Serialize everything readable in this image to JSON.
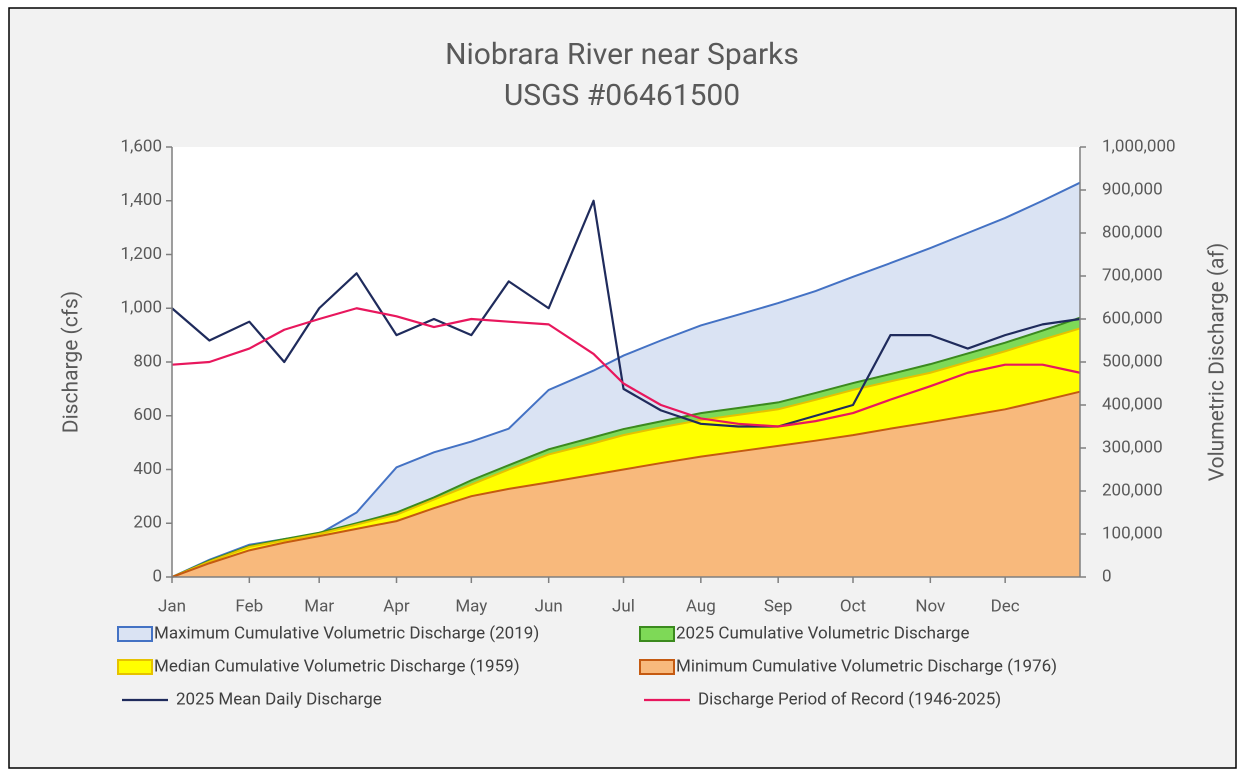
{
  "chart_data": {
    "type": "area-line",
    "title": "Niobrara River near Sparks",
    "subtitle": "USGS #06461500",
    "y_label": "Discharge (cfs)",
    "y2_label": "Volumetric Discharge (af)",
    "x": [
      1,
      16,
      32,
      46,
      60,
      75,
      91,
      106,
      121,
      136,
      152,
      170,
      182,
      197,
      213,
      228,
      244,
      259,
      274,
      289,
      305,
      320,
      335,
      350,
      365
    ],
    "xlim": [
      1,
      365
    ],
    "xticks": [
      {
        "value": 1,
        "label": "Jan"
      },
      {
        "value": 32,
        "label": "Feb"
      },
      {
        "value": 60,
        "label": "Mar"
      },
      {
        "value": 91,
        "label": "Apr"
      },
      {
        "value": 121,
        "label": "May"
      },
      {
        "value": 152,
        "label": "Jun"
      },
      {
        "value": 182,
        "label": "Jul"
      },
      {
        "value": 213,
        "label": "Aug"
      },
      {
        "value": 244,
        "label": "Sep"
      },
      {
        "value": 274,
        "label": "Oct"
      },
      {
        "value": 305,
        "label": "Nov"
      },
      {
        "value": 335,
        "label": "Dec"
      }
    ],
    "ylim": [
      0,
      1600
    ],
    "yticks": [
      0,
      200,
      400,
      600,
      800,
      {
        "value": 1000,
        "label": "1,000"
      },
      {
        "value": 1200,
        "label": "1,200"
      },
      {
        "value": 1400,
        "label": "1,400"
      },
      {
        "value": 1600,
        "label": "1,600"
      }
    ],
    "y2lim": [
      0,
      1000000
    ],
    "y2ticks": [
      0,
      {
        "value": 100000,
        "label": "100,000"
      },
      {
        "value": 200000,
        "label": "200,000"
      },
      {
        "value": 300000,
        "label": "300,000"
      },
      {
        "value": 400000,
        "label": "400,000"
      },
      {
        "value": 500000,
        "label": "500,000"
      },
      {
        "value": 600000,
        "label": "600,000"
      },
      {
        "value": 700000,
        "label": "700,000"
      },
      {
        "value": 800000,
        "label": "800,000"
      },
      {
        "value": 900000,
        "label": "900,000"
      },
      {
        "value": 1000000,
        "label": "1,000,000"
      }
    ],
    "series": [
      {
        "name": "Maximum Cumulative Volumetric Discharge (2019)",
        "type": "area",
        "axis": "y2",
        "color": "#4472c4",
        "fill": "#dae3f3",
        "values": [
          0,
          40000,
          75000,
          88000,
          100000,
          150000,
          255000,
          290000,
          315000,
          345000,
          435000,
          480000,
          515000,
          550000,
          585000,
          610000,
          637000,
          665000,
          698000,
          730000,
          765000,
          800000,
          835000,
          875000,
          917000
        ]
      },
      {
        "name": "2025 Cumulative Volumetric Discharge",
        "type": "area",
        "axis": "y2",
        "color": "#3b8a1e",
        "fill": "#7ed957",
        "values": [
          0,
          38000,
          72000,
          88000,
          103000,
          125000,
          150000,
          185000,
          225000,
          260000,
          297000,
          325000,
          344000,
          362000,
          381000,
          393000,
          406000,
          428000,
          451000,
          472000,
          495000,
          520000,
          545000,
          573000,
          603000
        ]
      },
      {
        "name": "Median Cumulative Volumetric Discharge (1959)",
        "type": "area",
        "axis": "y2",
        "color": "#e6c200",
        "fill": "#ffff00",
        "values": [
          0,
          36000,
          70000,
          85000,
          100000,
          122000,
          145000,
          180000,
          215000,
          250000,
          285000,
          311000,
          330000,
          348000,
          365000,
          377000,
          390000,
          412000,
          435000,
          455000,
          475000,
          500000,
          525000,
          552000,
          578000
        ]
      },
      {
        "name": "Minimum Cumulative Volumetric Discharge (1976)",
        "type": "area",
        "axis": "y2",
        "color": "#c55a11",
        "fill": "#f8b97c",
        "values": [
          0,
          32000,
          62000,
          80000,
          95000,
          112000,
          130000,
          160000,
          188000,
          205000,
          220000,
          238000,
          250000,
          265000,
          280000,
          292000,
          305000,
          317000,
          330000,
          345000,
          360000,
          375000,
          390000,
          410000,
          431000
        ]
      },
      {
        "name": "2025 Mean Daily Discharge",
        "type": "line",
        "axis": "y",
        "color": "#1f2b5c",
        "values": [
          1000,
          880,
          950,
          800,
          1000,
          1130,
          900,
          960,
          900,
          1100,
          1000,
          1400,
          700,
          620,
          570,
          560,
          560,
          600,
          640,
          900,
          900,
          850,
          900,
          940,
          960
        ]
      },
      {
        "name": "Discharge Period of Record (1946-2025)",
        "type": "line",
        "axis": "y",
        "color": "#e8175d",
        "values": [
          790,
          800,
          850,
          920,
          960,
          1000,
          970,
          930,
          960,
          950,
          940,
          830,
          720,
          640,
          590,
          570,
          560,
          580,
          610,
          660,
          710,
          760,
          790,
          790,
          760
        ]
      }
    ]
  }
}
